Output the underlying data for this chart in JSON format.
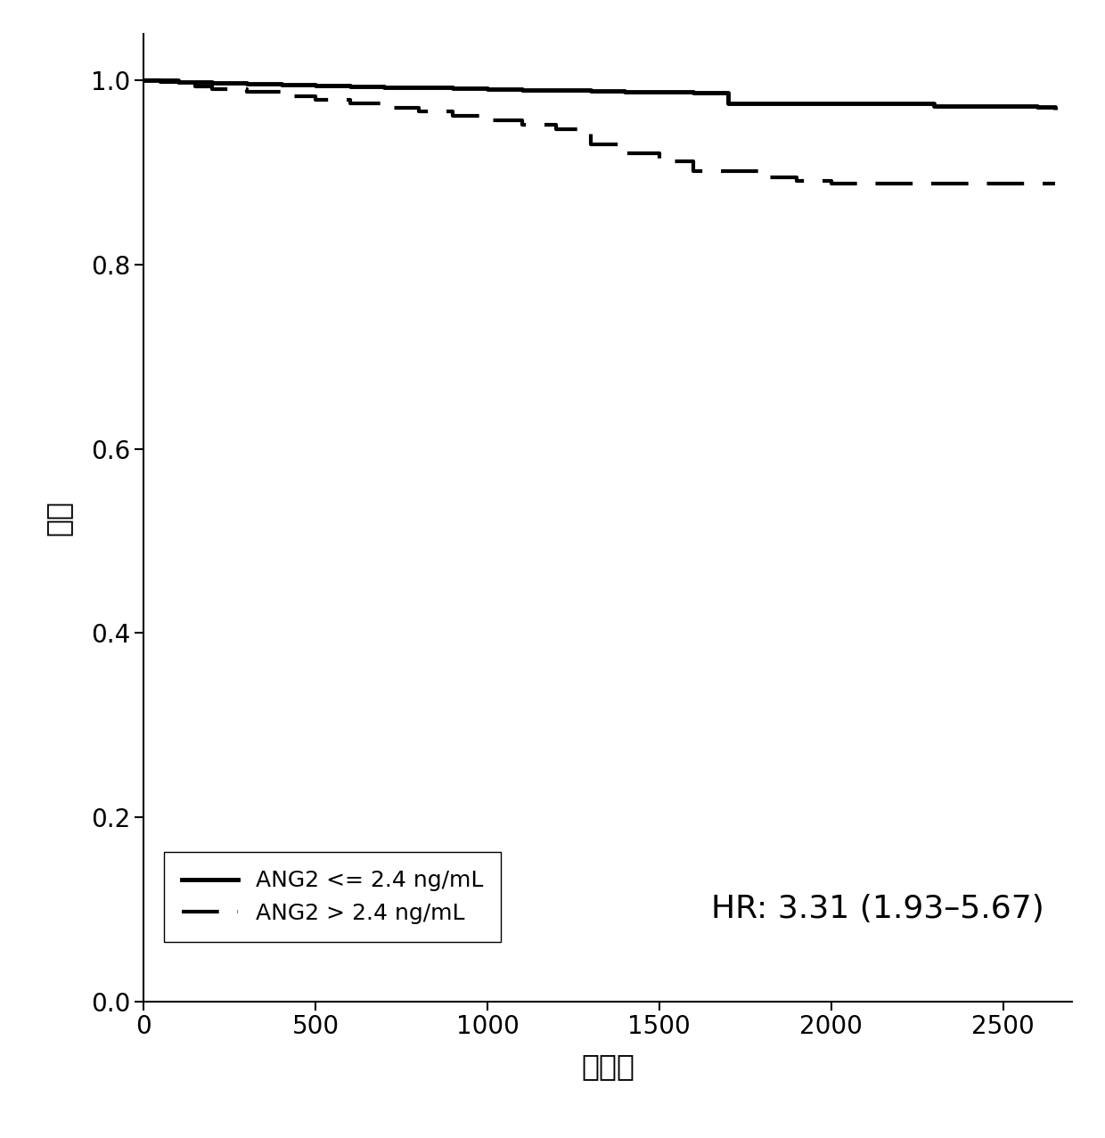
{
  "solid_x": [
    0,
    50,
    100,
    200,
    300,
    400,
    500,
    600,
    700,
    800,
    900,
    1000,
    1100,
    1200,
    1300,
    1400,
    1500,
    1600,
    1650,
    1700,
    1800,
    1900,
    2000,
    2100,
    2200,
    2300,
    2400,
    2500,
    2600,
    2650
  ],
  "solid_y": [
    1.0,
    1.0,
    0.998,
    0.997,
    0.996,
    0.995,
    0.994,
    0.993,
    0.992,
    0.992,
    0.991,
    0.99,
    0.989,
    0.989,
    0.988,
    0.987,
    0.987,
    0.986,
    0.986,
    0.975,
    0.975,
    0.975,
    0.975,
    0.975,
    0.975,
    0.972,
    0.972,
    0.972,
    0.971,
    0.968
  ],
  "dashed_x": [
    0,
    50,
    100,
    150,
    200,
    300,
    400,
    500,
    600,
    700,
    800,
    900,
    1000,
    1100,
    1200,
    1300,
    1400,
    1500,
    1600,
    1700,
    1800,
    1900,
    2000,
    2100,
    2200,
    2300,
    2400,
    2500,
    2600,
    2650
  ],
  "dashed_y": [
    1.0,
    0.998,
    0.996,
    0.993,
    0.99,
    0.987,
    0.983,
    0.979,
    0.975,
    0.97,
    0.966,
    0.961,
    0.956,
    0.952,
    0.947,
    0.93,
    0.921,
    0.912,
    0.901,
    0.901,
    0.895,
    0.891,
    0.888,
    0.888,
    0.888,
    0.888,
    0.888,
    0.888,
    0.888,
    0.888
  ],
  "ylabel": "存活",
  "xlabel": "天数：",
  "xlim": [
    0,
    2700
  ],
  "ylim": [
    0.0,
    1.05
  ],
  "yticks": [
    0.0,
    0.2,
    0.4,
    0.6,
    0.8,
    1.0
  ],
  "xticks": [
    0,
    500,
    1000,
    1500,
    2000,
    2500
  ],
  "legend_labels": [
    "ANG2 <= 2.4 ng/mL",
    "ANG2 > 2.4 ng/mL"
  ],
  "hr_text": "HR: 3.31 (1.93–5.67)",
  "line_color": "#000000",
  "line_width": 3.5,
  "dashed_linewidth": 3.0,
  "background_color": "#ffffff",
  "hr_font_size": 26,
  "legend_font_size": 18,
  "tick_font_size": 20,
  "label_font_size": 24
}
